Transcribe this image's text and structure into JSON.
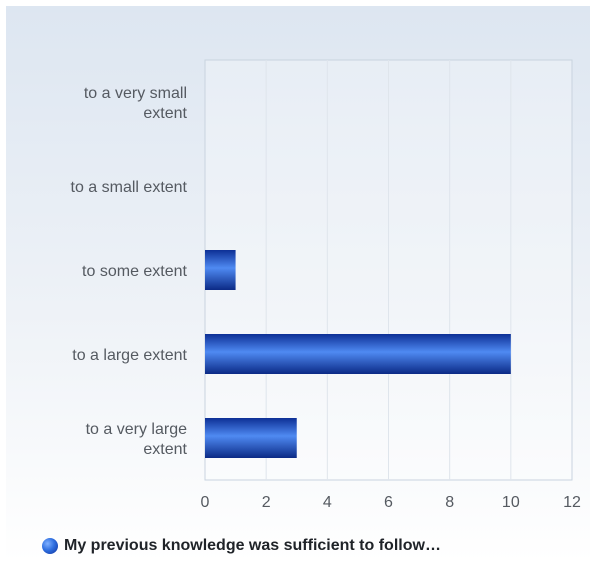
{
  "chart_data": {
    "type": "bar",
    "orientation": "horizontal",
    "categories": [
      [
        "to a very small",
        "extent"
      ],
      [
        "to a small extent"
      ],
      [
        "to some extent"
      ],
      [
        "to a large extent"
      ],
      [
        "to a very large",
        "extent"
      ]
    ],
    "series": [
      {
        "name": "My previous knowledge was sufficient to follow…",
        "values": [
          0,
          0,
          1,
          10,
          3
        ],
        "color": "#1f4fc4"
      }
    ],
    "xlim": [
      0,
      12
    ],
    "xticks": [
      "0",
      "2",
      "4",
      "6",
      "8",
      "10",
      "12"
    ],
    "grid": "vertical",
    "legend": "bottom"
  }
}
